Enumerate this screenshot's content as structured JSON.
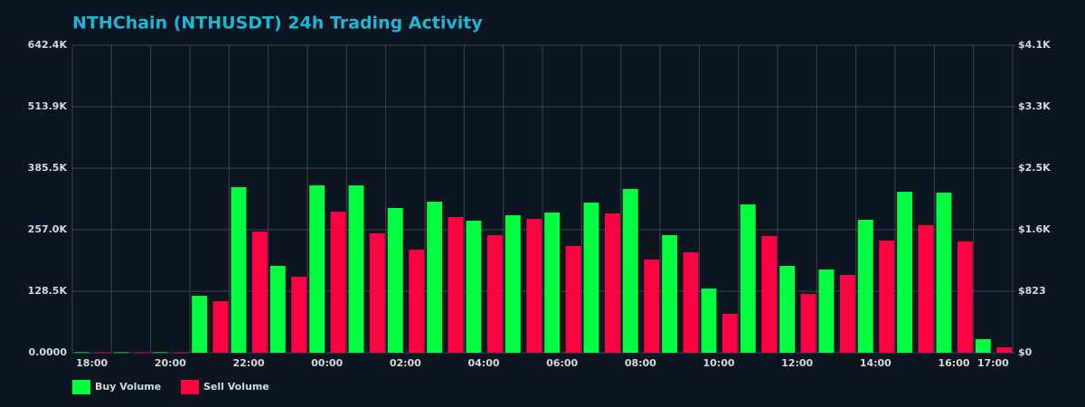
{
  "chart_data": {
    "type": "bar",
    "title": "NTHChain (NTHUSDT) 24h Trading Activity",
    "categories": [
      "18:00",
      null,
      "20:00",
      null,
      "22:00",
      null,
      "00:00",
      null,
      "02:00",
      null,
      "04:00",
      null,
      "06:00",
      null,
      "08:00",
      null,
      "10:00",
      null,
      "12:00",
      null,
      "14:00",
      null,
      "16:00",
      "17:00"
    ],
    "series": [
      {
        "name": "Buy Volume",
        "color": "#00ff41",
        "values": [
          1000,
          1000,
          1000,
          119000,
          345800,
          181400,
          349500,
          349500,
          302300,
          315500,
          275800,
          287200,
          292900,
          313600,
          342000,
          245600,
          134100,
          309900,
          181400,
          173800,
          277700,
          336300,
          334400,
          28300
        ]
      },
      {
        "name": "Sell Volume",
        "color": "#ff0040",
        "values": [
          500,
          500,
          500,
          107700,
          253200,
          158700,
          294700,
          249400,
          215400,
          283400,
          245600,
          279600,
          222900,
          291000,
          194600,
          209700,
          81200,
          243700,
          122800,
          162500,
          234300,
          266400,
          232400,
          11300
        ]
      }
    ],
    "ylim": [
      0,
      642400
    ],
    "yticks": [
      {
        "value": 0,
        "label": "0.0000"
      },
      {
        "value": 128480,
        "label": "128.5K"
      },
      {
        "value": 256960,
        "label": "257.0K"
      },
      {
        "value": 385440,
        "label": "385.5K"
      },
      {
        "value": 513920,
        "label": "513.9K"
      },
      {
        "value": 642400,
        "label": "642.4K"
      }
    ],
    "y2lim": [
      0,
      4115
    ],
    "y2ticks": [
      {
        "value": 0,
        "label": "$0"
      },
      {
        "value": 823,
        "label": "$823"
      },
      {
        "value": 1646,
        "label": "$1.6K"
      },
      {
        "value": 2469,
        "label": "$2.5K"
      },
      {
        "value": 3292,
        "label": "$3.3K"
      },
      {
        "value": 4115,
        "label": "$4.1K"
      }
    ],
    "grid": true,
    "legend": "bottom-left"
  }
}
